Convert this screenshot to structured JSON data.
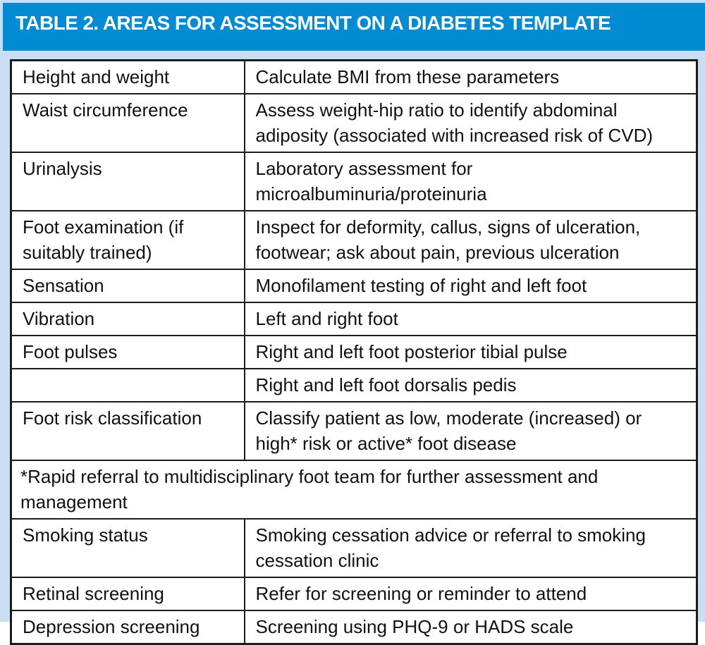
{
  "title": "TABLE 2. AREAS FOR ASSESSMENT ON A DIABETES TEMPLATE",
  "colors": {
    "header_bg": "#008bd2",
    "page_bg": "#c9ddf3",
    "border": "#1c1c1c",
    "title_text": "#ffffff",
    "body_text": "#111111"
  },
  "table": {
    "columns": [
      "area",
      "detail"
    ],
    "rows": [
      {
        "cells": [
          "Height and weight",
          "Calculate BMI from these parameters"
        ]
      },
      {
        "cells": [
          "Waist circumference",
          "Assess weight-hip ratio to identify abdominal adiposity (associated with increased risk of CVD)"
        ]
      },
      {
        "cells": [
          "Urinalysis",
          "Laboratory assessment for microalbuminuria/proteinuria"
        ]
      },
      {
        "cells": [
          "Foot examination (if suitably trained)",
          "Inspect for deformity, callus, signs of ulceration, footwear; ask about pain, previous ulceration"
        ]
      },
      {
        "cells": [
          "Sensation",
          "Monofilament testing of right and left foot"
        ]
      },
      {
        "cells": [
          "Vibration",
          "Left and right foot"
        ]
      },
      {
        "cells": [
          "Foot pulses",
          "Right and left foot posterior tibial pulse"
        ]
      },
      {
        "cells": [
          "",
          "Right and left foot dorsalis pedis"
        ]
      },
      {
        "cells": [
          "Foot risk classification",
          "Classify patient as low, moderate (increased) or high* risk or active* foot disease"
        ]
      },
      {
        "cells": [
          "*Rapid referral to multidisciplinary foot team for further assessment and management"
        ],
        "colspan": 2
      },
      {
        "cells": [
          "Smoking status",
          "Smoking cessation advice or referral to smoking cessation clinic"
        ]
      },
      {
        "cells": [
          "Retinal screening",
          "Refer for screening or reminder to attend"
        ]
      },
      {
        "cells": [
          "Depression screening",
          "Screening using PHQ-9 or HADS scale"
        ]
      }
    ]
  }
}
